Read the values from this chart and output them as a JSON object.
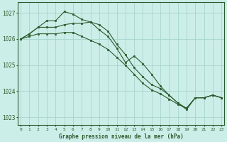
{
  "title": "Graphe pression niveau de la mer (hPa)",
  "bg_color": "#cceee8",
  "line_color": "#2d5a2d",
  "grid_color": "#a8d4cc",
  "ylim": [
    1022.7,
    1027.4
  ],
  "yticks": [
    1023,
    1024,
    1025,
    1026,
    1027
  ],
  "xlim": [
    -0.3,
    23.3
  ],
  "xticks": [
    0,
    1,
    2,
    3,
    4,
    5,
    6,
    7,
    8,
    9,
    10,
    11,
    12,
    13,
    14,
    15,
    16,
    17,
    18,
    19,
    20,
    21,
    22,
    23
  ],
  "series": [
    {
      "x": [
        0,
        1,
        2,
        3,
        4,
        5,
        6,
        7,
        8,
        9,
        10,
        11,
        12,
        13,
        14,
        15,
        16,
        17,
        18,
        19,
        20,
        21,
        22,
        23
      ],
      "y": [
        1026.0,
        1026.2,
        1026.45,
        1026.7,
        1026.7,
        1027.05,
        1026.95,
        1026.75,
        1026.65,
        1026.35,
        1026.1,
        1025.65,
        1025.1,
        1025.35,
        1025.05,
        1024.65,
        1024.2,
        1023.85,
        1023.55,
        1023.3,
        1023.75,
        1023.75,
        1023.85,
        1023.75
      ]
    },
    {
      "x": [
        0,
        1,
        2,
        3,
        4,
        5,
        6,
        7,
        8,
        9,
        10,
        11,
        12,
        13,
        14,
        15,
        16,
        17,
        18,
        19,
        20,
        21,
        22,
        23
      ],
      "y": [
        1026.0,
        1026.2,
        1026.45,
        1026.45,
        1026.45,
        1026.55,
        1026.6,
        1026.6,
        1026.65,
        1026.55,
        1026.3,
        1025.8,
        1025.4,
        1024.9,
        1024.55,
        1024.25,
        1024.1,
        1023.85,
        1023.55,
        1023.35,
        1023.75,
        1023.75,
        1023.85,
        1023.75
      ]
    },
    {
      "x": [
        0,
        1,
        2,
        3,
        4,
        5,
        6,
        7,
        8,
        9,
        10,
        11,
        12,
        13,
        14,
        15,
        16,
        17,
        18,
        19,
        20,
        21,
        22,
        23
      ],
      "y": [
        1026.0,
        1026.1,
        1026.2,
        1026.2,
        1026.2,
        1026.25,
        1026.25,
        1026.1,
        1025.95,
        1025.8,
        1025.6,
        1025.3,
        1025.0,
        1024.65,
        1024.3,
        1024.05,
        1023.9,
        1023.7,
        1023.5,
        1023.35,
        1023.75,
        1023.75,
        1023.85,
        1023.75
      ]
    }
  ]
}
